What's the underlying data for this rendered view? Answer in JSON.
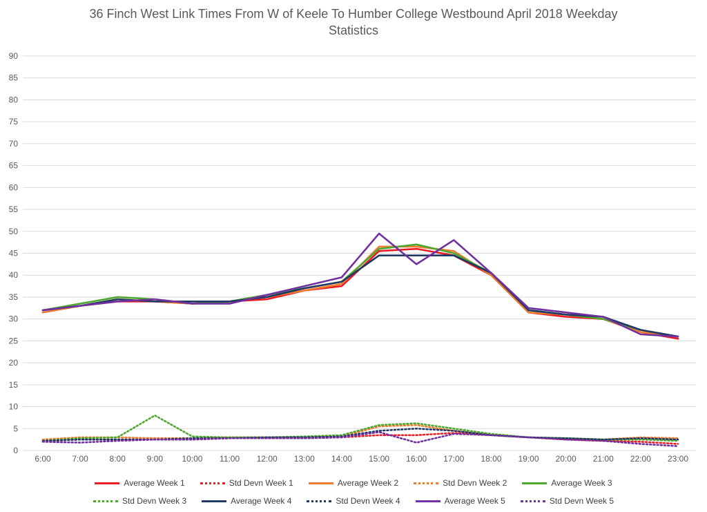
{
  "title": "36 Finch West Link Times From W of Keele To Humber College Westbound April 2018 Weekday Statistics",
  "colors": {
    "week1": "#ED1C24",
    "week2": "#ED7D31",
    "week3": "#4EA72E",
    "week4": "#1F3864",
    "week5": "#7030A0",
    "gridline": "#D9D9D9",
    "axis_text": "#595959",
    "title_text": "#595959"
  },
  "chart_data": {
    "type": "line",
    "title": "36 Finch West Link Times From W of Keele To Humber College Westbound April 2018 Weekday Statistics",
    "xlabel": "",
    "ylabel": "",
    "ylim": [
      0,
      90
    ],
    "ytick_step": 5,
    "grid": true,
    "legend_position": "bottom",
    "x": [
      "6:00",
      "7:00",
      "8:00",
      "9:00",
      "10:00",
      "11:00",
      "12:00",
      "13:00",
      "14:00",
      "15:00",
      "16:00",
      "17:00",
      "18:00",
      "19:00",
      "20:00",
      "21:00",
      "22:00",
      "23:00"
    ],
    "series": [
      {
        "name": "Average Week 1",
        "color": "#ED1C24",
        "style": "solid",
        "values": [
          31.5,
          33,
          34,
          34,
          33.5,
          34,
          34.5,
          36.5,
          37.5,
          45.5,
          46,
          44.5,
          40,
          31.5,
          30.5,
          30,
          27,
          25.5
        ]
      },
      {
        "name": "Std Devn Week 1",
        "color": "#ED1C24",
        "style": "dotted",
        "values": [
          2.2,
          2.5,
          2.5,
          2.5,
          2.5,
          2.8,
          2.8,
          2.8,
          3,
          3.5,
          3.5,
          4,
          3.5,
          3,
          2.5,
          2.2,
          2,
          1.5
        ]
      },
      {
        "name": "Average Week 2",
        "color": "#ED7D31",
        "style": "solid",
        "values": [
          31.5,
          33,
          34.5,
          34,
          33.5,
          34,
          35,
          36.5,
          38,
          46.5,
          46.5,
          45.5,
          40,
          31.5,
          31,
          30,
          27,
          26
        ]
      },
      {
        "name": "Std Devn Week 2",
        "color": "#ED7D31",
        "style": "dotted",
        "values": [
          2.5,
          3,
          3,
          2.8,
          2.8,
          3,
          3,
          3,
          3.2,
          5.5,
          5.8,
          4.5,
          3.5,
          3,
          2.8,
          2.5,
          3,
          2.8
        ]
      },
      {
        "name": "Average Week 3",
        "color": "#4EA72E",
        "style": "solid",
        "values": [
          32,
          33.5,
          35,
          34.5,
          33.5,
          34,
          35.5,
          37,
          38.5,
          46,
          47,
          45,
          40.5,
          32,
          31,
          30,
          27.5,
          26
        ]
      },
      {
        "name": "Std Devn Week 3",
        "color": "#4EA72E",
        "style": "dotted",
        "values": [
          2.2,
          2.8,
          3,
          8,
          3.2,
          3,
          3,
          3.2,
          3.5,
          5.8,
          6.2,
          5,
          3.8,
          3,
          2.8,
          2.5,
          2.5,
          2.2
        ]
      },
      {
        "name": "Average Week 4",
        "color": "#1F3864",
        "style": "solid",
        "values": [
          32,
          33,
          34.5,
          34,
          34,
          34,
          35,
          37,
          38.5,
          44.5,
          44.5,
          44.5,
          40.5,
          32,
          31,
          30.5,
          27.5,
          26
        ]
      },
      {
        "name": "Std Devn Week 4",
        "color": "#1F3864",
        "style": "dotted",
        "values": [
          2.2,
          2.5,
          2.5,
          2.5,
          2.8,
          2.8,
          3,
          3,
          3.2,
          4.5,
          5,
          4.5,
          3.5,
          3,
          2.8,
          2.5,
          2.8,
          2.5
        ]
      },
      {
        "name": "Average Week 5",
        "color": "#7030A0",
        "style": "solid",
        "values": [
          32,
          33,
          34,
          34.5,
          33.5,
          33.5,
          35.5,
          37.5,
          39.5,
          49.5,
          42.5,
          48,
          40.5,
          32.5,
          31.5,
          30.5,
          26.5,
          26
        ]
      },
      {
        "name": "Std Devn Week 5",
        "color": "#7030A0",
        "style": "dotted",
        "values": [
          2,
          1.8,
          2.2,
          2.5,
          2.5,
          2.8,
          2.8,
          2.8,
          3,
          4.2,
          1.8,
          3.8,
          3.5,
          3,
          2.5,
          2.2,
          1.5,
          1
        ]
      }
    ]
  }
}
